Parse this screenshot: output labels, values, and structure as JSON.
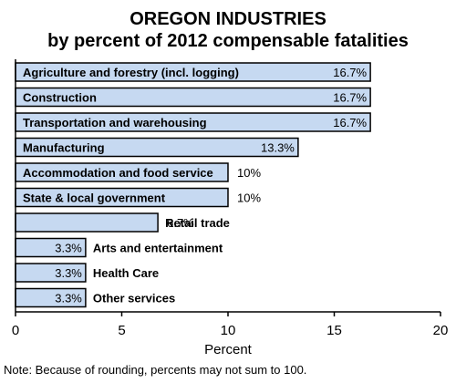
{
  "chart_data": {
    "type": "bar",
    "orientation": "horizontal",
    "title": "OREGON INDUSTRIES",
    "subtitle": "by percent of 2012 compensable fatalities",
    "categories": [
      "Agriculture and forestry (incl. logging)",
      "Construction",
      "Transportation and warehousing",
      "Manufacturing",
      "Accommodation and food service",
      "State & local government",
      "Retail trade",
      "Arts and entertainment",
      "Health Care",
      "Other services"
    ],
    "values": [
      16.7,
      16.7,
      16.7,
      13.3,
      10,
      10,
      6.7,
      3.3,
      3.3,
      3.3
    ],
    "data_labels": [
      "16.7%",
      "16.7%",
      "16.7%",
      "13.3%",
      "10%",
      "10%",
      "6.7%",
      "3.3%",
      "3.3%",
      "3.3%"
    ],
    "xlabel": "Percent",
    "xlim": [
      0,
      20
    ],
    "xticks": [
      0,
      5,
      10,
      15,
      20
    ],
    "grid": false,
    "colors": {
      "bar_fill": "#c6d9f1",
      "bar_stroke": "#000000"
    },
    "note": "Note: Because of rounding, percents may not sum to 100."
  }
}
